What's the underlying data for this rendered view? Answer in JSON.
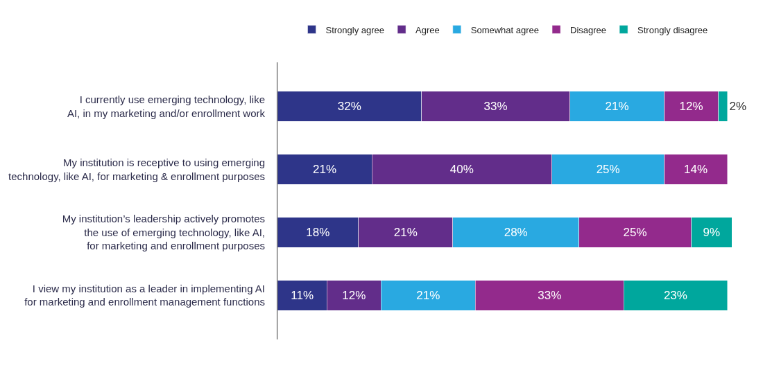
{
  "chart_data": {
    "type": "bar",
    "orientation": "horizontal",
    "stacked": true,
    "legend": "top",
    "categories": [
      "I currently use emerging technology, like\nAI, in my marketing and/or enrollment work",
      "My institution is receptive to using emerging\ntechnology, like AI, for marketing & enrollment purposes",
      "My institution’s leadership actively promotes\nthe use of emerging technology, like AI,\nfor marketing and enrollment purposes",
      "I view my institution as a leader in implementing AI\nfor marketing and enrollment management functions"
    ],
    "series": [
      {
        "name": "Strongly agree",
        "color": "#2e3589",
        "values": [
          32,
          21,
          18,
          11
        ],
        "value_labels": [
          "32%",
          "21%",
          "18%",
          "11%"
        ]
      },
      {
        "name": "Agree",
        "color": "#622d8a",
        "values": [
          33,
          40,
          21,
          12
        ],
        "value_labels": [
          "33%",
          "40%",
          "21%",
          "12%"
        ]
      },
      {
        "name": "Somewhat agree",
        "color": "#29a9e1",
        "values": [
          21,
          25,
          28,
          21
        ],
        "value_labels": [
          "21%",
          "25%",
          "28%",
          "21%"
        ]
      },
      {
        "name": "Disagree",
        "color": "#932a8c",
        "values": [
          12,
          14,
          25,
          33
        ],
        "value_labels": [
          "12%",
          "14%",
          "25%",
          "33%"
        ]
      },
      {
        "name": "Strongly disagree",
        "color": "#00a79d",
        "values": [
          2,
          null,
          9,
          23
        ],
        "value_labels": [
          "2%",
          null,
          "9%",
          "23%"
        ]
      }
    ]
  }
}
